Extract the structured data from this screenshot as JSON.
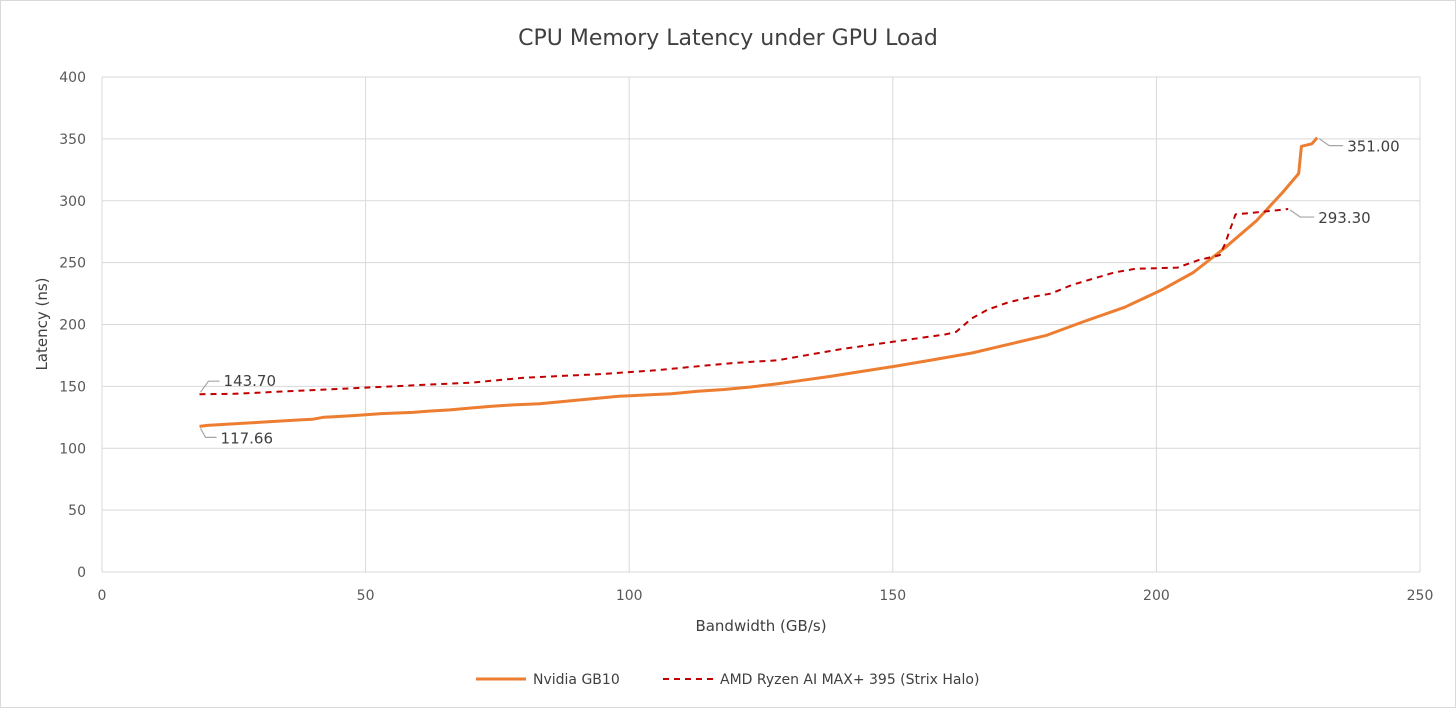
{
  "colors": {
    "gb10": "#ed7d31",
    "strix": "#c00000",
    "grid": "#d9d9d9",
    "leader": "#a6a6a6",
    "text": "#404040"
  },
  "chart_data": {
    "type": "line",
    "title": "CPU Memory Latency under GPU Load",
    "xlabel": "Bandwidth (GB/s)",
    "ylabel": "Latency (ns)",
    "xlim": [
      0,
      250
    ],
    "ylim": [
      0,
      400
    ],
    "xticks": [
      0,
      50,
      100,
      150,
      200,
      250
    ],
    "yticks": [
      0,
      50,
      100,
      150,
      200,
      250,
      300,
      350,
      400
    ],
    "grid": true,
    "legend_position": "bottom",
    "series": [
      {
        "name": "Nvidia GB10",
        "style": "solid",
        "color": "#ed7d31",
        "x": [
          18.5,
          20,
          22,
          24,
          26,
          28,
          30,
          32,
          34,
          36,
          38,
          40,
          42,
          44,
          46,
          48,
          50,
          53,
          56,
          59,
          62,
          66,
          70,
          74,
          78,
          83,
          88,
          93,
          98,
          103,
          108,
          113,
          118,
          123,
          128,
          133,
          138,
          144,
          150,
          157,
          165,
          172,
          179,
          186,
          194,
          201,
          207,
          213,
          219,
          224,
          227,
          227.5,
          229.5,
          230.5
        ],
        "y": [
          117.66,
          118.5,
          119,
          119.5,
          120,
          120.5,
          121,
          121.5,
          122,
          122.5,
          123,
          123.5,
          125,
          125.5,
          126,
          126.5,
          127,
          128,
          128.5,
          129,
          130,
          131,
          132.5,
          134,
          135,
          136,
          138,
          140,
          142,
          143,
          144,
          146,
          147.5,
          149.5,
          152,
          155,
          158,
          162,
          166,
          171,
          177,
          184,
          191,
          202,
          214,
          228,
          242,
          262,
          284,
          307,
          322,
          344,
          346,
          351
        ]
      },
      {
        "name": "AMD Ryzen AI MAX+ 395 (Strix Halo)",
        "style": "dashed",
        "color": "#c00000",
        "x": [
          18.5,
          25,
          30,
          35,
          40,
          45,
          50,
          55,
          60,
          65,
          70,
          75,
          80,
          85,
          90,
          95,
          100,
          105,
          110,
          115,
          120,
          124,
          128,
          132,
          136,
          140,
          145,
          150,
          155,
          160,
          162,
          165,
          168,
          172,
          176,
          180,
          184,
          188,
          192,
          196,
          200,
          204,
          208,
          212,
          213,
          215,
          220,
          225
        ],
        "y": [
          143.7,
          144,
          145,
          146,
          147,
          148,
          149,
          150,
          151,
          152,
          153,
          155,
          157,
          158,
          159,
          160,
          161.5,
          163,
          165,
          167,
          169,
          170,
          171,
          174,
          177,
          180,
          183,
          186,
          189,
          192,
          194,
          205,
          212,
          218,
          222,
          225,
          232,
          237,
          242,
          245,
          245.5,
          246,
          252,
          256,
          265,
          289,
          291,
          293.3
        ]
      }
    ],
    "annotations": [
      {
        "series": 0,
        "label": "117.66",
        "side": "below"
      },
      {
        "series": 0,
        "label": "351.00",
        "side": "right"
      },
      {
        "series": 1,
        "label": "143.70",
        "side": "above"
      },
      {
        "series": 1,
        "label": "293.30",
        "side": "right"
      }
    ]
  }
}
